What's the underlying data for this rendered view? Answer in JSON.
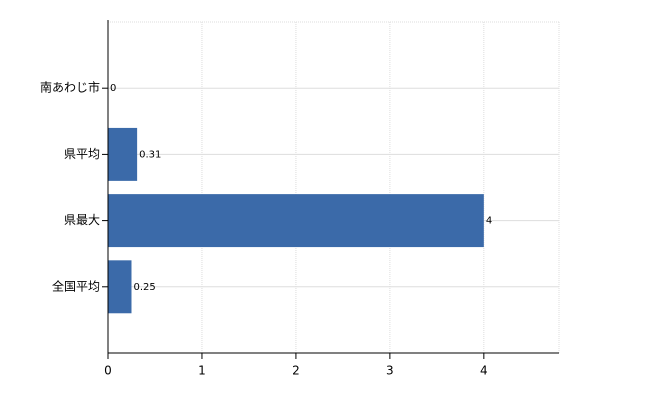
{
  "chart_data": {
    "type": "bar",
    "orientation": "horizontal",
    "categories": [
      "南あわじ市",
      "県平均",
      "県最大",
      "全国平均"
    ],
    "values": [
      0,
      0.31,
      4,
      0.25
    ],
    "color": "#3b6aa9",
    "xlim": [
      0,
      4.8
    ],
    "xticks": [
      0,
      1,
      2,
      3,
      4
    ],
    "grid": true,
    "value_labels_shown": true
  }
}
